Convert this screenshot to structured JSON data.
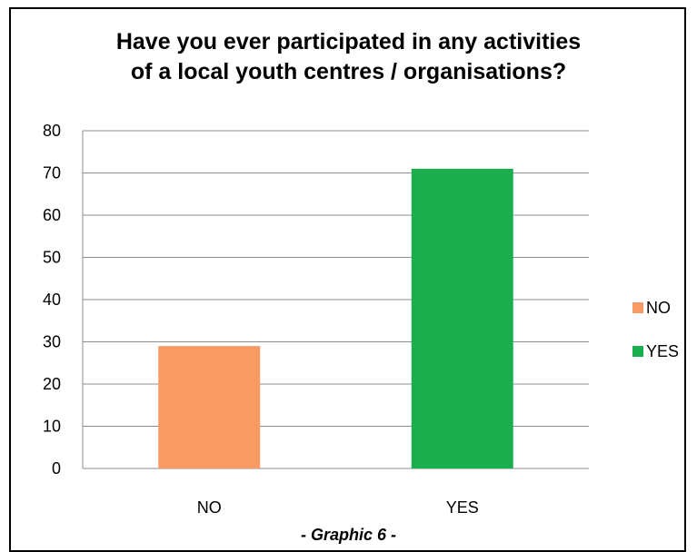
{
  "chart_data": {
    "type": "bar",
    "title_lines": [
      "Have you ever participated in any activities",
      "of a local youth centres  / organisations?"
    ],
    "categories": [
      "NO",
      "YES"
    ],
    "values": [
      29,
      71
    ],
    "colors": [
      "#F79A63",
      "#1AAE4F"
    ],
    "ylim": [
      0,
      80
    ],
    "yticks": [
      "0",
      "10",
      "20",
      "30",
      "40",
      "50",
      "60",
      "70",
      "80"
    ],
    "grid": true,
    "legend": {
      "placement": "right",
      "entries": [
        {
          "label": "NO",
          "color": "#F79A63"
        },
        {
          "label": "YES",
          "color": "#1AAE4F"
        }
      ]
    },
    "caption": "- Graphic 6 -"
  }
}
